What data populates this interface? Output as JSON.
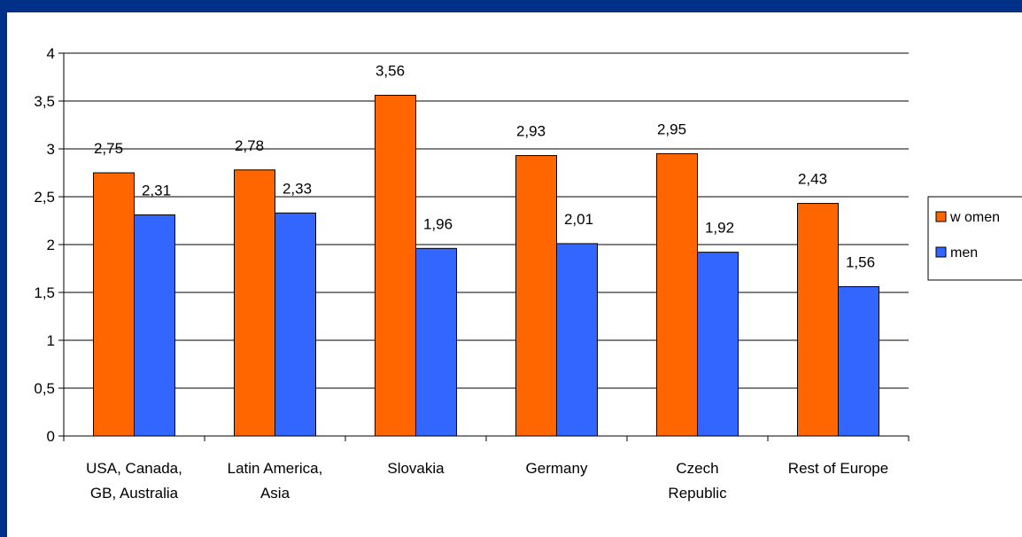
{
  "chart_data": {
    "type": "bar",
    "categories": [
      [
        "USA, Canada,",
        "GB, Australia"
      ],
      [
        "Latin America,",
        "Asia"
      ],
      [
        "Slovakia"
      ],
      [
        "Germany"
      ],
      [
        "Czech",
        "Republic"
      ],
      [
        "Rest of Europe"
      ]
    ],
    "series": [
      {
        "name": "w omen",
        "color": "#ff6600",
        "values": [
          2.75,
          2.78,
          3.56,
          2.93,
          2.95,
          2.43
        ],
        "labels": [
          "2,75",
          "2,78",
          "3,56",
          "2,93",
          "2,95",
          "2,43"
        ]
      },
      {
        "name": "men",
        "color": "#3366ff",
        "values": [
          2.31,
          2.33,
          1.96,
          2.01,
          1.92,
          1.56
        ],
        "labels": [
          "2,31",
          "2,33",
          "1,96",
          "2,01",
          "1,92",
          "1,56"
        ]
      }
    ],
    "yticks": [
      "0",
      "0,5",
      "1",
      "1,5",
      "2",
      "2,5",
      "3",
      "3,5",
      "4"
    ],
    "ytick_values": [
      0,
      0.5,
      1,
      1.5,
      2,
      2.5,
      3,
      3.5,
      4
    ],
    "ylim": [
      0,
      4
    ],
    "grid": true,
    "legend": "right",
    "title": "",
    "xlabel": "",
    "ylabel": ""
  }
}
